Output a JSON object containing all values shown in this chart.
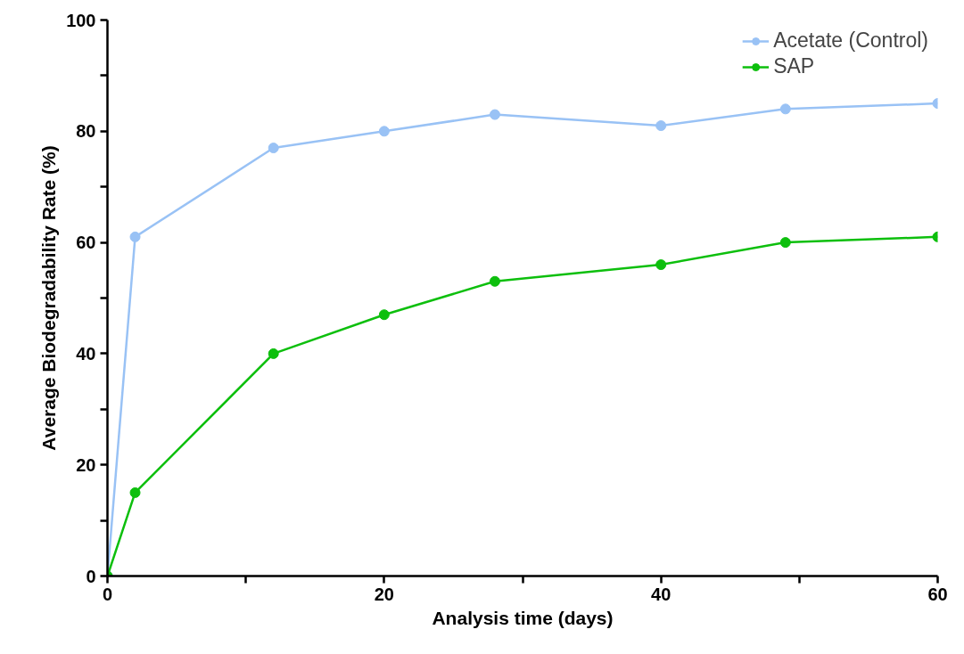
{
  "chart_data": {
    "type": "line",
    "xlabel": "Analysis time (days)",
    "ylabel": "Average Biodegradability Rate (%)",
    "x": [
      0,
      2,
      12,
      20,
      28,
      40,
      49,
      60
    ],
    "series": [
      {
        "name": "Acetate (Control)",
        "color": "#99c2f5",
        "values": [
          0,
          61,
          77,
          80,
          83,
          81,
          84,
          85
        ]
      },
      {
        "name": "SAP",
        "color": "#0dbf0d",
        "values": [
          0,
          15,
          40,
          47,
          53,
          56,
          60,
          61
        ]
      }
    ],
    "xlim": [
      0,
      60
    ],
    "ylim": [
      0,
      100
    ],
    "xticks": [
      0,
      {
        "value": 10,
        "label": null
      },
      20,
      {
        "value": 30,
        "label": null
      },
      40,
      {
        "value": 50,
        "label": null
      },
      60
    ],
    "yticks": [
      0,
      {
        "value": 10,
        "label": null
      },
      20,
      {
        "value": 30,
        "label": null
      },
      40,
      {
        "value": 50,
        "label": null
      },
      60,
      {
        "value": 70,
        "label": null
      },
      80,
      {
        "value": 90,
        "label": null
      },
      100
    ],
    "grid": false,
    "legend": "top right",
    "marker": "circle",
    "line_style": "solid"
  }
}
